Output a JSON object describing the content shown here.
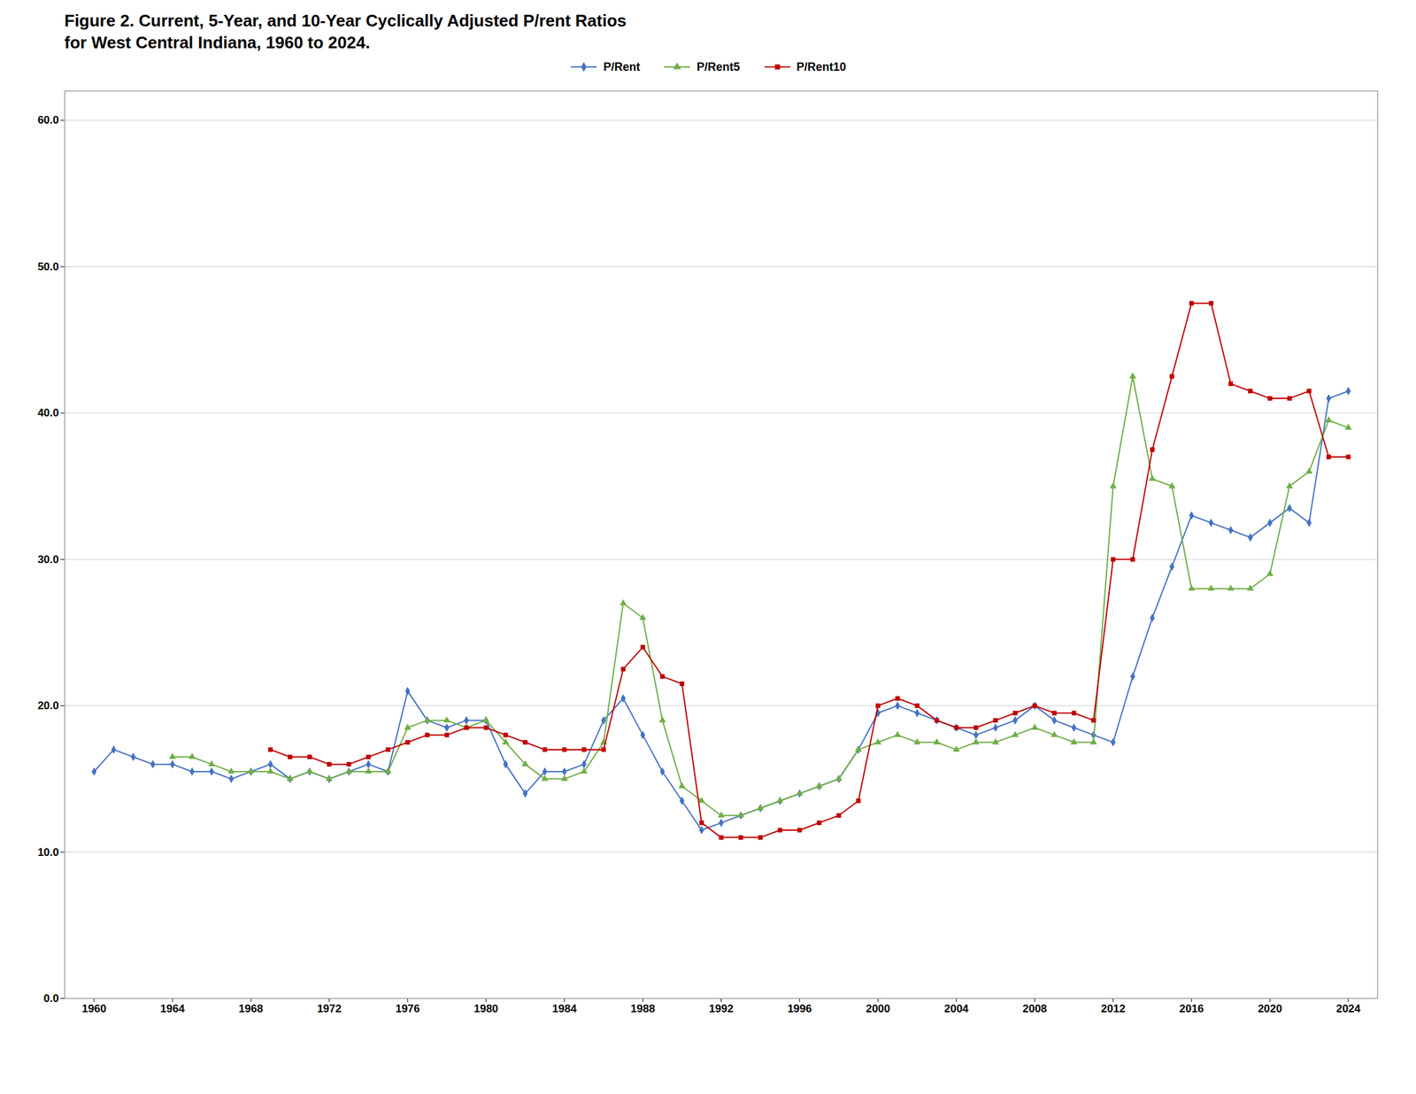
{
  "chart_data": {
    "type": "line",
    "title": "Figure 2.  Current, 5-Year, and 10-Year Cyclically Adjusted P/rent Ratios\nfor West Central Indiana, 1960 to 2024.",
    "x": [
      1960,
      1961,
      1962,
      1963,
      1964,
      1965,
      1966,
      1967,
      1968,
      1969,
      1970,
      1971,
      1972,
      1973,
      1974,
      1975,
      1976,
      1977,
      1978,
      1979,
      1980,
      1981,
      1982,
      1983,
      1984,
      1985,
      1986,
      1987,
      1988,
      1989,
      1990,
      1991,
      1992,
      1993,
      1994,
      1995,
      1996,
      1997,
      1998,
      1999,
      2000,
      2001,
      2002,
      2003,
      2004,
      2005,
      2006,
      2007,
      2008,
      2009,
      2010,
      2011,
      2012,
      2013,
      2014,
      2015,
      2016,
      2017,
      2018,
      2019,
      2020,
      2021,
      2022,
      2023,
      2024
    ],
    "series": [
      {
        "name": "P/Rent",
        "color": "#4472C4",
        "marker": "diamond",
        "values": [
          15.5,
          17.0,
          16.5,
          16.0,
          16.0,
          15.5,
          15.5,
          15.0,
          15.5,
          16.0,
          15.0,
          15.5,
          15.0,
          15.5,
          16.0,
          15.5,
          21.0,
          19.0,
          18.5,
          19.0,
          19.0,
          16.0,
          14.0,
          15.5,
          15.5,
          16.0,
          19.0,
          20.5,
          18.0,
          15.5,
          13.5,
          11.5,
          12.0,
          12.5,
          13.0,
          13.5,
          14.0,
          14.5,
          15.0,
          17.0,
          19.5,
          20.0,
          19.5,
          19.0,
          18.5,
          18.0,
          18.5,
          19.0,
          20.0,
          19.0,
          18.5,
          18.0,
          17.5,
          22.0,
          26.0,
          29.5,
          33.0,
          32.5,
          32.0,
          31.5,
          32.5,
          33.5,
          32.5,
          41.0,
          41.5
        ]
      },
      {
        "name": "P/Rent5",
        "color": "#70AD47",
        "marker": "triangle",
        "values": [
          null,
          null,
          null,
          null,
          16.5,
          16.5,
          16.0,
          15.5,
          15.5,
          15.5,
          15.0,
          15.5,
          15.0,
          15.5,
          15.5,
          15.5,
          18.5,
          19.0,
          19.0,
          18.5,
          19.0,
          17.5,
          16.0,
          15.0,
          15.0,
          15.5,
          17.5,
          27.0,
          26.0,
          19.0,
          14.5,
          13.5,
          12.5,
          12.5,
          13.0,
          13.5,
          14.0,
          14.5,
          15.0,
          17.0,
          17.5,
          18.0,
          17.5,
          17.5,
          17.0,
          17.5,
          17.5,
          18.0,
          18.5,
          18.0,
          17.5,
          17.5,
          35.0,
          42.5,
          35.5,
          35.0,
          28.0,
          28.0,
          28.0,
          28.0,
          29.0,
          35.0,
          36.0,
          39.5,
          39.0
        ]
      },
      {
        "name": "P/Rent10",
        "color": "#C00000",
        "marker": "square",
        "values": [
          null,
          null,
          null,
          null,
          null,
          null,
          null,
          null,
          null,
          17.0,
          16.5,
          16.5,
          16.0,
          16.0,
          16.5,
          17.0,
          17.5,
          18.0,
          18.0,
          18.5,
          18.5,
          18.0,
          17.5,
          17.0,
          17.0,
          17.0,
          17.0,
          22.5,
          24.0,
          22.0,
          21.5,
          12.0,
          11.0,
          11.0,
          11.0,
          11.5,
          11.5,
          12.0,
          12.5,
          13.5,
          20.0,
          20.5,
          20.0,
          19.0,
          18.5,
          18.5,
          19.0,
          19.5,
          20.0,
          19.5,
          19.5,
          19.0,
          30.0,
          30.0,
          37.5,
          42.5,
          47.5,
          47.5,
          42.0,
          41.5,
          41.0,
          41.0,
          41.5,
          37.0,
          37.0
        ]
      }
    ],
    "xlim": [
      1958.5,
      2025.5
    ],
    "xticks": [
      1960,
      1964,
      1968,
      1972,
      1976,
      1980,
      1984,
      1988,
      1992,
      1996,
      2000,
      2004,
      2008,
      2012,
      2016,
      2020,
      2024
    ],
    "ylim": [
      0.0,
      62.0
    ],
    "yticks": [
      {
        "value": 0,
        "label": "0.0"
      },
      {
        "value": 10,
        "label": "10.0"
      },
      {
        "value": 20,
        "label": "20.0"
      },
      {
        "value": 30,
        "label": "30.0"
      },
      {
        "value": 40,
        "label": "40.0"
      },
      {
        "value": 50,
        "label": "50.0"
      },
      {
        "value": 60,
        "label": "60.0"
      }
    ],
    "grid": true,
    "legend": "top"
  }
}
